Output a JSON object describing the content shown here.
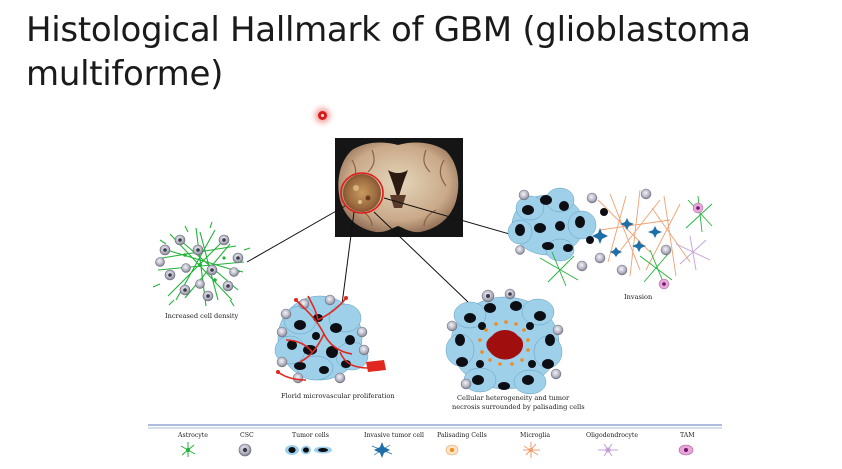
{
  "slide": {
    "title": "Histological Hallmark of GBM (glioblastoma multiforme)"
  },
  "panels": {
    "density": "Increased cell density",
    "microvascular": "Florid microvascular proliferation",
    "necrosis_line1": "Cellular heterogeneity and tumor",
    "necrosis_line2": "necrosis surrounded by palisading cells",
    "invasion": "Invasion"
  },
  "legend": {
    "items": [
      {
        "label": "Astrocyte",
        "icon": "astrocyte-icon"
      },
      {
        "label": "CSC",
        "icon": "csc-icon"
      },
      {
        "label": "Tumor cells",
        "icon": "tumor-cells-icon"
      },
      {
        "label": "Invasive tumor cell",
        "icon": "invasive-tumor-cell-icon"
      },
      {
        "label": "Palisading Cells",
        "icon": "palisading-cells-icon"
      },
      {
        "label": "Microglia",
        "icon": "microglia-icon"
      },
      {
        "label": "Oligodendrocyte",
        "icon": "oligodendrocyte-icon"
      },
      {
        "label": "TAM",
        "icon": "tam-icon"
      }
    ]
  },
  "colors": {
    "astrocyte": "#22b339",
    "tumor_blue": "#9fd0ea",
    "nucleus": "#0d0d14",
    "vessel": "#e0281e",
    "microglia": "#f0a070",
    "oligodendrocyte": "#c5a0d8",
    "tam": "#e9a6d8",
    "necrosis": "#a00e0e",
    "invasive": "#1e6fa8",
    "legend_line": "#5b78b8"
  }
}
